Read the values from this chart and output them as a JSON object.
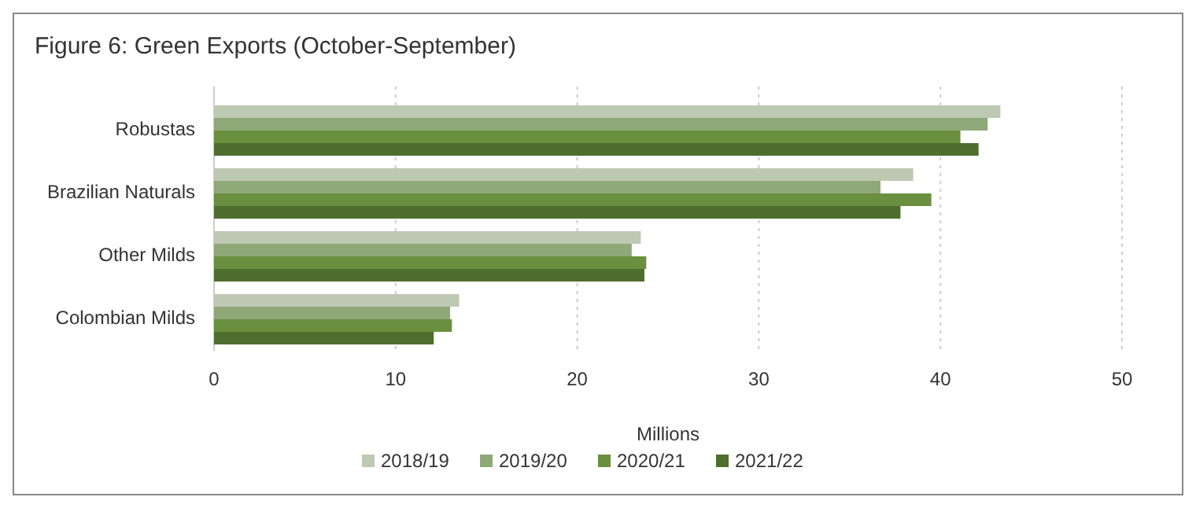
{
  "chart_data": {
    "type": "bar",
    "orientation": "horizontal",
    "title": "Figure 6: Green Exports (October-September)",
    "xlabel": "Millions",
    "categories": [
      "Robustas",
      "Brazilian Naturals",
      "Other Milds",
      "Colombian Milds"
    ],
    "series": [
      {
        "name": "2018/19",
        "color": "#bec9b4",
        "values": [
          43.3,
          38.5,
          23.5,
          13.5
        ]
      },
      {
        "name": "2019/20",
        "color": "#8fa878",
        "values": [
          42.6,
          36.7,
          23.0,
          13.0
        ]
      },
      {
        "name": "2020/21",
        "color": "#6a8f3e",
        "values": [
          41.1,
          39.5,
          23.8,
          13.1
        ]
      },
      {
        "name": "2021/22",
        "color": "#4e6e2e",
        "values": [
          42.1,
          37.8,
          23.7,
          12.1
        ]
      }
    ],
    "xlim": [
      0,
      50
    ],
    "xticks": [
      0,
      10,
      20,
      30,
      40,
      50
    ],
    "grid": "x",
    "legend": "bottom"
  }
}
